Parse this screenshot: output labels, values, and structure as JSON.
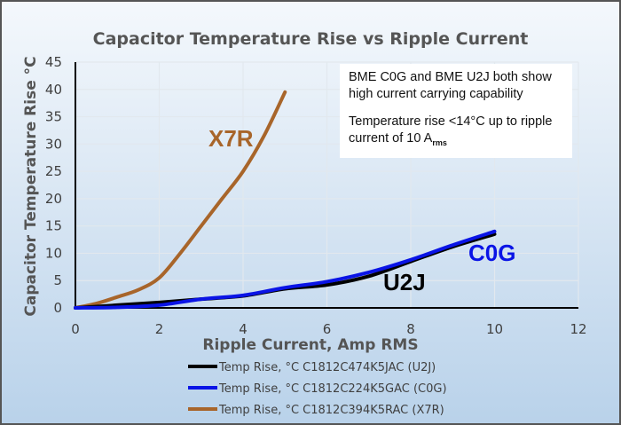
{
  "chart_data": {
    "type": "line",
    "title": "Capacitor Temperature Rise vs Ripple Current",
    "xlabel": "Ripple Current, Amp RMS",
    "ylabel": "Capacitor Temperature Rise °C",
    "xlim": [
      0,
      12
    ],
    "ylim": [
      0,
      45
    ],
    "xticks": [
      0,
      2,
      4,
      6,
      8,
      10,
      12
    ],
    "yticks": [
      0,
      5,
      10,
      15,
      20,
      25,
      30,
      35,
      40,
      45
    ],
    "grid": true,
    "legend_position": "bottom",
    "series": [
      {
        "name": "Temp Rise, °C C1812C474K5JAC (U2J)",
        "label": "U2J",
        "color": "#000000",
        "x": [
          0,
          1,
          2,
          3,
          4,
          5,
          6,
          7,
          8,
          9,
          10
        ],
        "y": [
          0,
          0.5,
          1,
          1.6,
          2.2,
          3.5,
          4.2,
          5.8,
          8.5,
          11.2,
          13.5
        ]
      },
      {
        "name": "Temp Rise, °C C1812C224K5GAC (C0G)",
        "label": "C0G",
        "color": "#0a14e6",
        "x": [
          0,
          1,
          2,
          3,
          4,
          5,
          6,
          7,
          8,
          9,
          10
        ],
        "y": [
          0,
          0.1,
          0.5,
          1.6,
          2.3,
          3.7,
          4.8,
          6.5,
          8.8,
          11.5,
          14
        ]
      },
      {
        "name": "Temp Rise, °C C1812C394K5RAC (X7R)",
        "label": "X7R",
        "color": "#a8652a",
        "x": [
          0,
          0.5,
          1,
          1.5,
          2,
          2.5,
          3,
          3.5,
          4,
          4.5,
          5
        ],
        "y": [
          0,
          0.8,
          2,
          3.3,
          5.5,
          10,
          15,
          20,
          25,
          31.5,
          39.5
        ]
      }
    ],
    "annotation": {
      "line1": "BME C0G and BME U2J both show high current carrying capability",
      "line2": "Temperature rise <14°C up to ripple current of 10 A",
      "line2_sub": "rms"
    }
  }
}
